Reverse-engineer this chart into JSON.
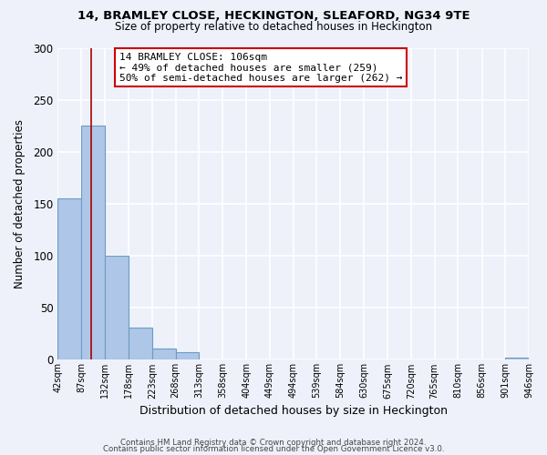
{
  "title": "14, BRAMLEY CLOSE, HECKINGTON, SLEAFORD, NG34 9TE",
  "subtitle": "Size of property relative to detached houses in Heckington",
  "xlabel": "Distribution of detached houses by size in Heckington",
  "ylabel": "Number of detached properties",
  "bin_edges": [
    42,
    87,
    132,
    178,
    223,
    268,
    313,
    358,
    404,
    449,
    494,
    539,
    584,
    630,
    675,
    720,
    765,
    810,
    856,
    901,
    946
  ],
  "bin_labels": [
    "42sqm",
    "87sqm",
    "132sqm",
    "178sqm",
    "223sqm",
    "268sqm",
    "313sqm",
    "358sqm",
    "404sqm",
    "449sqm",
    "494sqm",
    "539sqm",
    "584sqm",
    "630sqm",
    "675sqm",
    "720sqm",
    "765sqm",
    "810sqm",
    "856sqm",
    "901sqm",
    "946sqm"
  ],
  "counts": [
    155,
    225,
    100,
    31,
    11,
    7,
    0,
    0,
    0,
    0,
    0,
    0,
    0,
    0,
    0,
    0,
    0,
    0,
    0,
    2
  ],
  "bar_color": "#aec6e8",
  "bar_edge_color": "#6b9dc2",
  "vline_x": 106,
  "vline_color": "#aa0000",
  "ylim": [
    0,
    300
  ],
  "yticks": [
    0,
    50,
    100,
    150,
    200,
    250,
    300
  ],
  "annotation_line1": "14 BRAMLEY CLOSE: 106sqm",
  "annotation_line2": "← 49% of detached houses are smaller (259)",
  "annotation_line3": "50% of semi-detached houses are larger (262) →",
  "footer1": "Contains HM Land Registry data © Crown copyright and database right 2024.",
  "footer2": "Contains public sector information licensed under the Open Government Licence v3.0.",
  "background_color": "#eef1fa",
  "grid_color": "#ffffff"
}
